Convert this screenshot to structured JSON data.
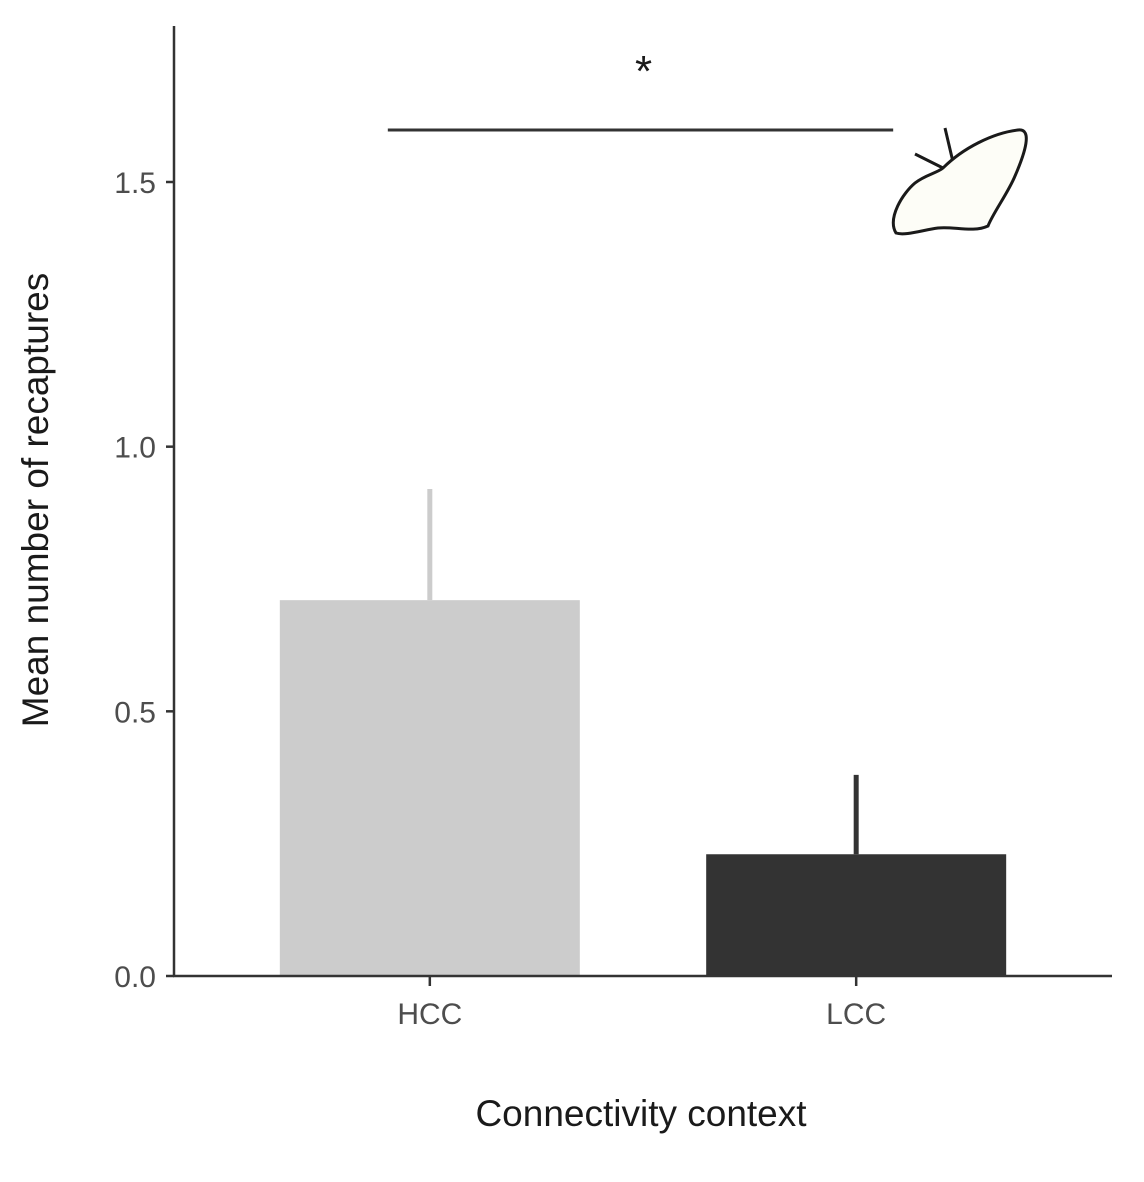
{
  "chart_data": {
    "type": "bar",
    "categories": [
      "HCC",
      "LCC"
    ],
    "values": [
      0.71,
      0.23
    ],
    "error_upper": [
      0.92,
      0.38
    ],
    "bar_colors": [
      "#cccccc",
      "#333333"
    ],
    "error_colors": [
      "#cccccc",
      "#333333"
    ],
    "xlabel": "Connectivity context",
    "ylabel": "Mean number of recaptures",
    "ylim": [
      0,
      1.8
    ],
    "yticks": [
      {
        "value": 0.0,
        "label": "0.0"
      },
      {
        "value": 0.5,
        "label": "0.5"
      },
      {
        "value": 1.0,
        "label": "1.0"
      },
      {
        "value": 1.5,
        "label": "1.5"
      }
    ],
    "significance": {
      "label": "*",
      "from": "HCC",
      "to": "LCC",
      "y": 1.6
    },
    "grid": false,
    "legend": "none"
  },
  "decoration": {
    "icon": "butterfly-icon"
  }
}
